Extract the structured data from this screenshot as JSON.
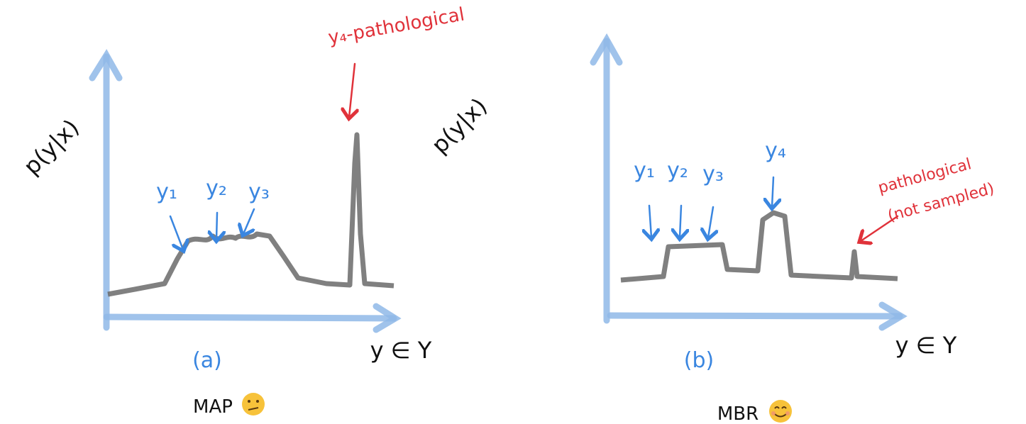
{
  "panels": [
    {
      "y_axis_label": "p(y|x)",
      "x_axis_label": "y ∈ Y",
      "caption": "(a)",
      "method": "MAP",
      "annotations": [
        "y₁",
        "y₂",
        "y₃",
        "y₄-pathological"
      ]
    },
    {
      "y_axis_label": "p(y|x)",
      "x_axis_label": "y ∈ Y",
      "caption": "(b)",
      "method": "MBR",
      "annotations": [
        "y₁",
        "y₂",
        "y₃",
        "y₄",
        "pathological",
        "(not sampled)"
      ]
    }
  ]
}
